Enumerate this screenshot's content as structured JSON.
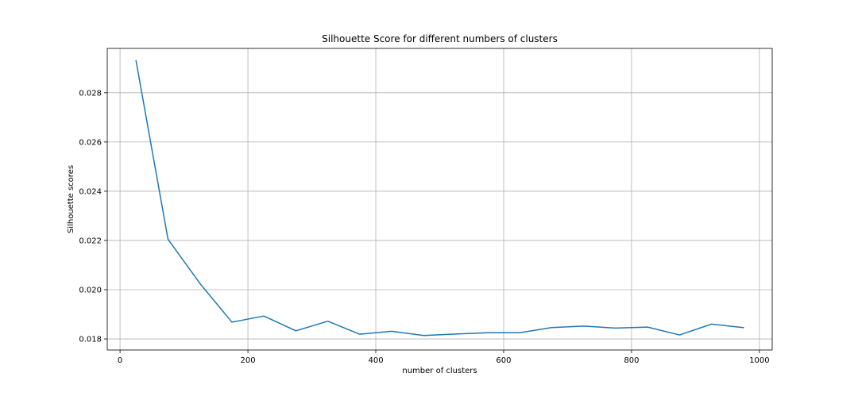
{
  "chart_data": {
    "type": "line",
    "title": "Silhouette Score for different numbers of clusters",
    "xlabel": "number of clusters",
    "ylabel": "Silhouette scores",
    "xlim": [
      -20,
      1020
    ],
    "ylim": [
      0.01755,
      0.0298
    ],
    "xticks": [
      0,
      200,
      400,
      600,
      800,
      1000
    ],
    "xtick_labels": [
      "0",
      "200",
      "400",
      "600",
      "800",
      "1000"
    ],
    "yticks": [
      0.018,
      0.02,
      0.022,
      0.024,
      0.026,
      0.028
    ],
    "ytick_labels": [
      "0.018",
      "0.020",
      "0.022",
      "0.024",
      "0.026",
      "0.028"
    ],
    "grid": true,
    "color": "#1f77b4",
    "series": [
      {
        "x": [
          25,
          75,
          125,
          175,
          225,
          275,
          325,
          375,
          425,
          475,
          525,
          575,
          625,
          675,
          725,
          775,
          825,
          875,
          925,
          975
        ],
        "y": [
          0.0293,
          0.02205,
          0.02025,
          0.01868,
          0.01893,
          0.01833,
          0.01872,
          0.01819,
          0.01831,
          0.01814,
          0.0182,
          0.01825,
          0.01825,
          0.01846,
          0.01852,
          0.01844,
          0.01848,
          0.01816,
          0.0186,
          0.01846
        ]
      }
    ]
  }
}
